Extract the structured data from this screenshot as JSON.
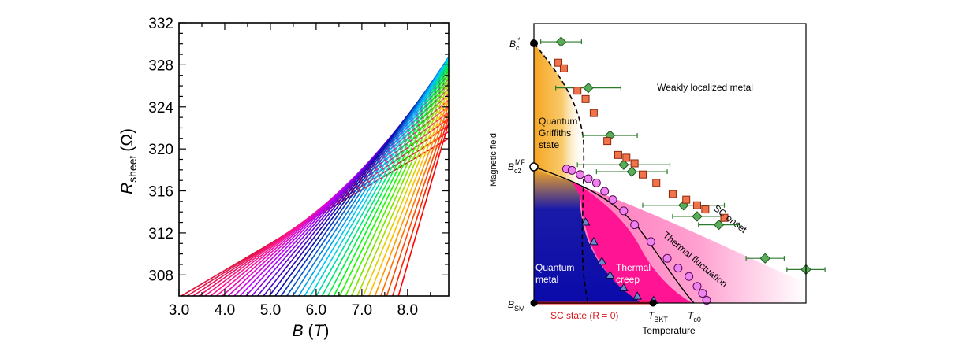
{
  "chart_data": [
    {
      "type": "line",
      "xlabel_main": "B",
      "xlabel_unit": "T",
      "ylabel_main": "R",
      "ylabel_sub": "sheet",
      "ylabel_unit": "(Ω)",
      "xlim": [
        3.0,
        8.9
      ],
      "ylim": [
        306,
        332
      ],
      "xticks": [
        "3.0",
        "4.0",
        "5.0",
        "6.0",
        "7.0",
        "8.0"
      ],
      "yticks": [
        "308",
        "312",
        "316",
        "320",
        "324",
        "328",
        "332"
      ],
      "series_count": 38,
      "colormap": [
        "#dc143c",
        "#ff1493",
        "#b400ff",
        "#0a0aaa",
        "#00c8ff",
        "#00ff00",
        "#ffc800",
        "#ff0000"
      ],
      "crossing_region": {
        "B": [
          7.2,
          7.8
        ],
        "R": 306
      },
      "high_field_endpoint": {
        "B": 8.9,
        "R": [
          321,
          331
        ]
      }
    },
    {
      "type": "phase-diagram",
      "xlabel": "Temperature",
      "ylabel": "Magnetic field",
      "y_markers": {
        "bc_star": {
          "main": "B",
          "sub": "c",
          "sup": "*"
        },
        "bc2_mf": {
          "main": "B",
          "sub": "c2",
          "sup": "MF"
        },
        "bsm": {
          "main": "B",
          "sub": "SM"
        }
      },
      "x_markers": {
        "tbkt": {
          "main": "T",
          "sub": "BKT"
        },
        "tc0": {
          "main": "T",
          "sub": "c0"
        }
      },
      "regions": {
        "weakly_localized": "Weakly localized metal",
        "quantum_griffiths": [
          "Quantum",
          "Griffiths",
          "state"
        ],
        "quantum_metal": [
          "Quantum",
          "metal"
        ],
        "thermal_creep": [
          "Thermal",
          "creep"
        ],
        "thermal_fluctuation": "Thermal fluctuation",
        "sc_onset": "SC onset",
        "sc_state": "SC state (R = 0)"
      },
      "colors": {
        "quantum_metal": "#0a0aaa",
        "griffiths": "#f5a623",
        "thermal_creep": "#ff1493",
        "fluctuation": "#ff90c8",
        "diamond_marker": "#5aac5a",
        "square_marker": "#f0734a",
        "circle_marker": "#ee82ee",
        "triangle_marker": "#6a8ad0",
        "errorbar": "#2d7a2d",
        "sc_state_line": "#d7191c"
      },
      "series": [
        {
          "name": "diamonds",
          "marker": "diamond",
          "points": [
            [
              0.1,
              0.935
            ],
            [
              0.2,
              0.77
            ],
            [
              0.28,
              0.6
            ],
            [
              0.33,
              0.495
            ],
            [
              0.36,
              0.47
            ],
            [
              0.55,
              0.35
            ],
            [
              0.6,
              0.31
            ],
            [
              0.68,
              0.28
            ],
            [
              0.85,
              0.16
            ],
            [
              1.0,
              0.12
            ]
          ],
          "xerr": [
            0.075,
            0.12,
            0.1,
            0.17,
            0.13,
            0.15,
            0.09,
            0.075,
            0.07,
            0.07
          ]
        },
        {
          "name": "squares",
          "marker": "square",
          "points": [
            [
              0.09,
              0.86
            ],
            [
              0.11,
              0.84
            ],
            [
              0.16,
              0.76
            ],
            [
              0.19,
              0.73
            ],
            [
              0.22,
              0.68
            ],
            [
              0.27,
              0.58
            ],
            [
              0.31,
              0.53
            ],
            [
              0.34,
              0.52
            ],
            [
              0.37,
              0.5
            ],
            [
              0.4,
              0.46
            ],
            [
              0.45,
              0.43
            ],
            [
              0.51,
              0.39
            ],
            [
              0.56,
              0.37
            ],
            [
              0.6,
              0.35
            ],
            [
              0.63,
              0.335
            ],
            [
              0.7,
              0.305
            ]
          ]
        },
        {
          "name": "circles",
          "marker": "circle",
          "points": [
            [
              0.12,
              0.48
            ],
            [
              0.14,
              0.475
            ],
            [
              0.17,
              0.46
            ],
            [
              0.2,
              0.445
            ],
            [
              0.23,
              0.43
            ],
            [
              0.26,
              0.4
            ],
            [
              0.29,
              0.37
            ],
            [
              0.33,
              0.33
            ],
            [
              0.37,
              0.28
            ],
            [
              0.43,
              0.22
            ],
            [
              0.49,
              0.16
            ],
            [
              0.53,
              0.125
            ],
            [
              0.57,
              0.095
            ],
            [
              0.6,
              0.06
            ],
            [
              0.62,
              0.035
            ],
            [
              0.635,
              0.01
            ]
          ]
        },
        {
          "name": "triangles",
          "marker": "triangle",
          "points": [
            [
              0.19,
              0.29
            ],
            [
              0.22,
              0.22
            ],
            [
              0.25,
              0.15
            ],
            [
              0.28,
              0.1
            ],
            [
              0.33,
              0.055
            ],
            [
              0.38,
              0.025
            ],
            [
              0.44,
              0.01
            ]
          ]
        }
      ]
    }
  ]
}
